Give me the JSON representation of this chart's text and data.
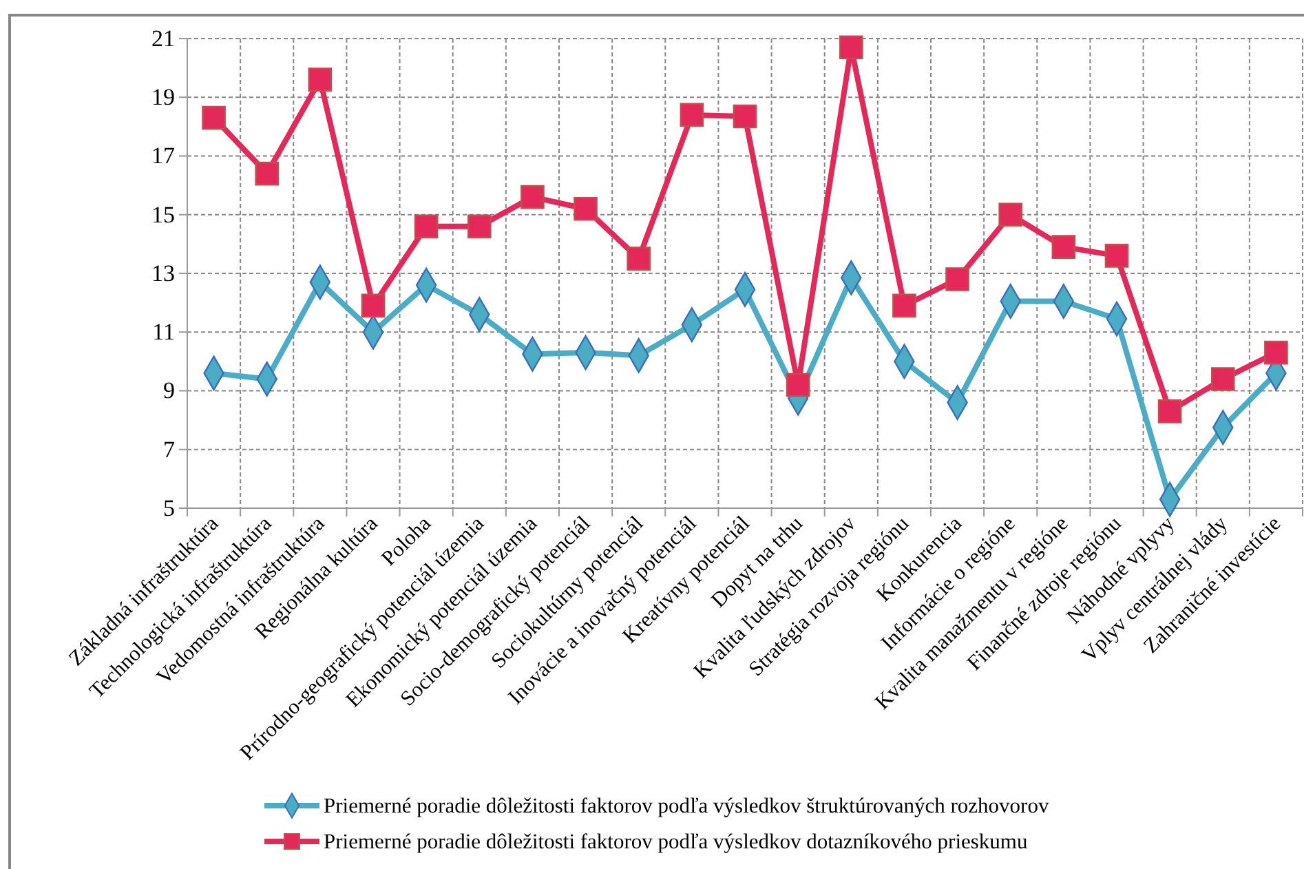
{
  "chart_data": {
    "type": "line",
    "categories": [
      "Základná infraštruktúra",
      "Technologická infraštruktúra",
      "Vedomostná infraštruktúra",
      "Regionálna kultúra",
      "Poloha",
      "Prírodno-geografický potenciál územia",
      "Ekonomický potenciál územia",
      "Socio-demografický potenciál",
      "Sociokultúrny potenciál",
      "Inovácie a inovačný potenciál",
      "Kreatívny potenciál",
      "Dopyt na trhu",
      "Kvalita ľudských zdrojov",
      "Stratégia rozvoja regiónu",
      "Konkurencia",
      "Informácie o regióne",
      "Kvalita manažmentu v regióne",
      "Finančné zdroje regiónu",
      "Náhodné vplyvy",
      "Vplyv centrálnej vlády",
      "Zahraničné investície"
    ],
    "series": [
      {
        "name": "Priemerné poradie dôležitosti faktorov podľa výsledkov štruktúrovaných rozhovorov",
        "color": "#4bacc6",
        "marker": "diamond",
        "values": [
          9.6,
          9.4,
          12.7,
          11.0,
          12.6,
          11.6,
          10.25,
          10.3,
          10.2,
          11.25,
          12.45,
          8.75,
          12.85,
          10.0,
          8.6,
          12.05,
          12.05,
          11.45,
          5.3,
          7.75,
          9.6
        ]
      },
      {
        "name": "Priemerné poradie dôležitosti faktorov podľa výsledkov dotazníkového prieskumu",
        "color": "#e5285a",
        "marker": "square",
        "values": [
          18.3,
          16.4,
          19.6,
          11.9,
          14.6,
          14.6,
          15.6,
          15.2,
          13.5,
          18.4,
          18.35,
          9.2,
          20.7,
          11.9,
          12.8,
          15.0,
          13.9,
          13.6,
          8.3,
          9.4,
          10.3
        ]
      }
    ],
    "ylim": [
      5,
      21
    ],
    "yticks": [
      5,
      7,
      9,
      11,
      13,
      15,
      17,
      19,
      21
    ],
    "grid": true,
    "legend": "bottom",
    "line_style": "solid"
  }
}
